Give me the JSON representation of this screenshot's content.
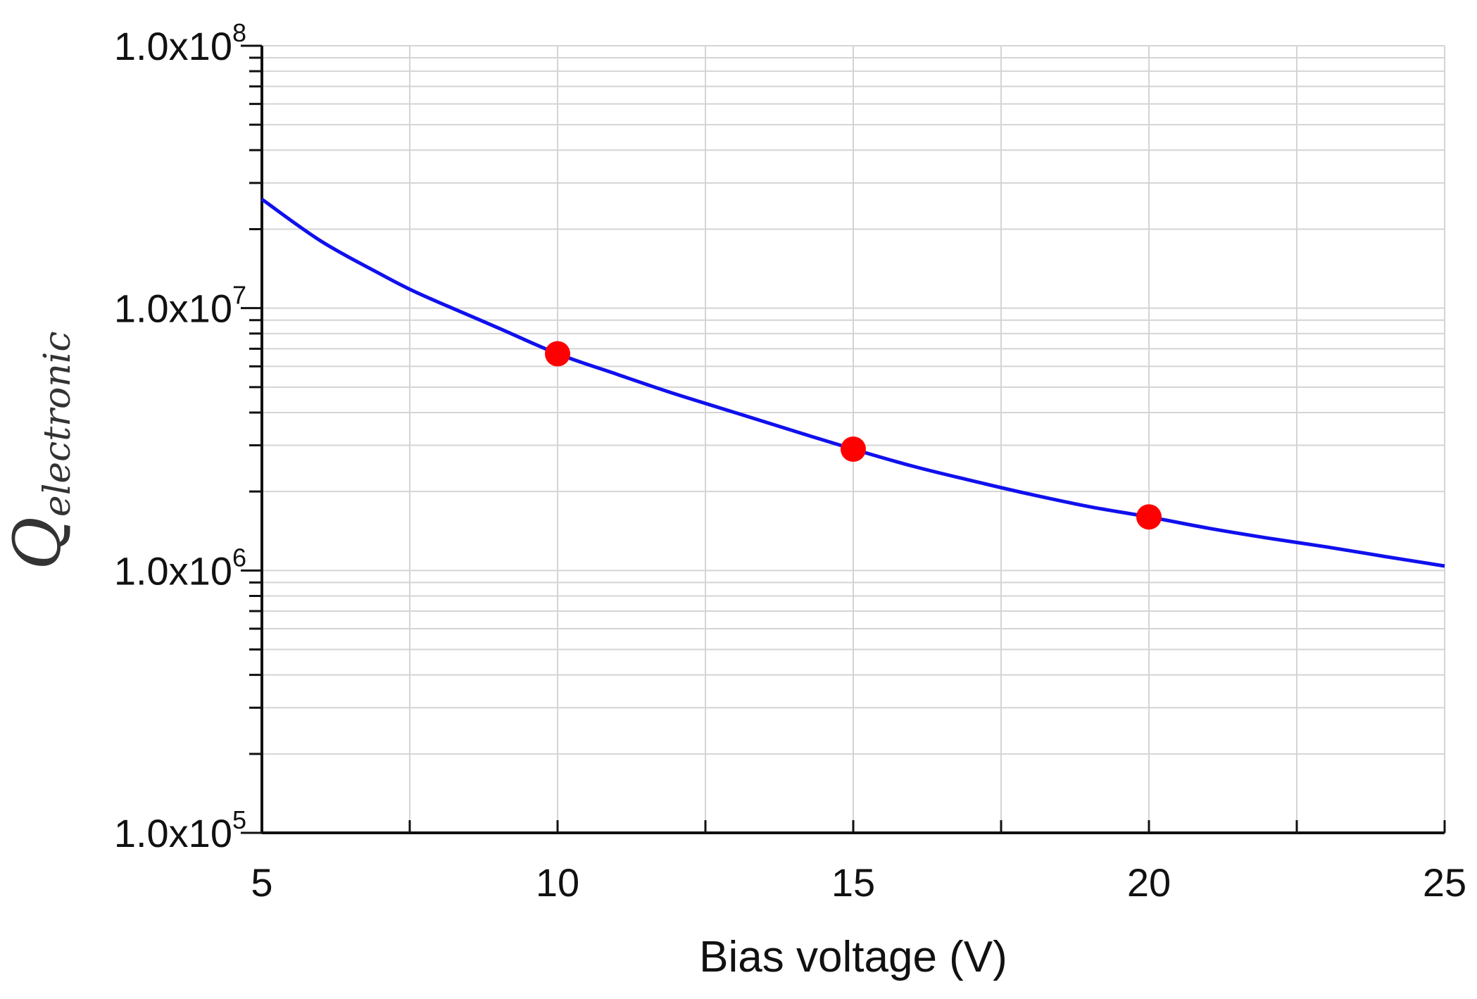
{
  "chart_data": {
    "type": "line",
    "title": "",
    "xlabel": "Bias voltage (V)",
    "ylabel": {
      "main": "Q",
      "subscript": "electronic"
    },
    "x_scale": "linear",
    "y_scale": "log",
    "xlim": [
      5,
      25
    ],
    "ylim": [
      100000,
      100000000
    ],
    "grid": true,
    "legend": "none",
    "x_ticks": [
      5,
      10,
      15,
      20,
      25
    ],
    "x_tick_labels": [
      "5",
      "10",
      "15",
      "20",
      "25"
    ],
    "y_ticks": [
      100000,
      1000000,
      10000000,
      100000000
    ],
    "y_tick_labels": [
      {
        "mantissa": "1.0x10",
        "exponent": "5"
      },
      {
        "mantissa": "1.0x10",
        "exponent": "6"
      },
      {
        "mantissa": "1.0x10",
        "exponent": "7"
      },
      {
        "mantissa": "1.0x10",
        "exponent": "8"
      }
    ],
    "series": [
      {
        "kind": "line",
        "color": "#1010ee",
        "x": [
          5,
          6,
          7,
          7.5,
          8,
          9,
          10,
          11,
          12,
          13,
          14,
          15,
          16,
          17,
          18,
          19,
          20,
          21,
          22,
          23,
          24,
          25
        ],
        "y": [
          26000000,
          18000000,
          13500000,
          11800000,
          10500000,
          8400000,
          6700000,
          5600000,
          4700000,
          4000000,
          3400000,
          2900000,
          2500000,
          2200000,
          1950000,
          1750000,
          1600000,
          1450000,
          1330000,
          1230000,
          1130000,
          1040000
        ]
      },
      {
        "kind": "scatter",
        "color": "#ff0000",
        "x": [
          10,
          15,
          20
        ],
        "y": [
          6700000,
          2900000,
          1600000
        ]
      }
    ]
  }
}
